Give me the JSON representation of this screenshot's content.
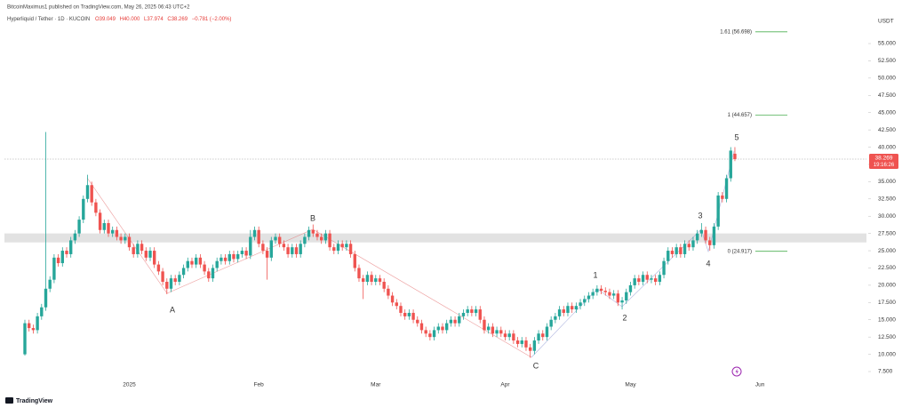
{
  "header": {
    "published": "BitcoinMaximus1 published on TradingView.com, May 26, 2025 06:43 UTC+2",
    "symbol": "Hyperliquid / Tether · 1D · KUCOIN",
    "ohlc": [
      "O39.049",
      "H40.000",
      "L37.974",
      "C38.269"
    ],
    "change": "−0.781 (−2.00%)"
  },
  "footer": {
    "logo": "TradingView"
  },
  "chart_data": {
    "type": "candlestick",
    "up_color": "#26a69a",
    "down_color": "#ef5350",
    "currency": "USDT",
    "ylim": [
      5.955,
      59.38
    ],
    "yticks": [
      {
        "value": 7.5,
        "label": "7.500"
      },
      {
        "value": 10,
        "label": "10.000"
      },
      {
        "value": 12.5,
        "label": "12.500"
      },
      {
        "value": 15,
        "label": "15.000"
      },
      {
        "value": 17.5,
        "label": "17.500"
      },
      {
        "value": 20,
        "label": "20.000"
      },
      {
        "value": 22.5,
        "label": "22.500"
      },
      {
        "value": 25,
        "label": "25.000"
      },
      {
        "value": 27.5,
        "label": "27.500"
      },
      {
        "value": 30,
        "label": "30.000"
      },
      {
        "value": 32.5,
        "label": "32.500"
      },
      {
        "value": 35,
        "label": "35.000"
      },
      {
        "value": 37.5,
        "label": "37.500"
      },
      {
        "value": 40,
        "label": "40.000"
      },
      {
        "value": 42.5,
        "label": "42.500"
      },
      {
        "value": 45,
        "label": "45.000"
      },
      {
        "value": 47.5,
        "label": "47.500"
      },
      {
        "value": 50,
        "label": "50.000"
      },
      {
        "value": 52.5,
        "label": "52.500"
      },
      {
        "value": 55,
        "label": "55.000"
      }
    ],
    "grid": false,
    "categories": [
      null,
      null,
      null,
      null,
      null,
      null,
      null,
      null,
      null,
      null,
      null,
      null,
      null,
      null,
      null,
      null,
      null,
      null,
      null,
      null,
      null,
      null,
      null,
      null,
      null,
      "2025",
      null,
      null,
      null,
      null,
      null,
      null,
      null,
      null,
      null,
      null,
      null,
      null,
      null,
      null,
      null,
      null,
      null,
      null,
      null,
      null,
      null,
      null,
      null,
      null,
      null,
      null,
      null,
      null,
      null,
      null,
      "Feb",
      null,
      null,
      null,
      null,
      null,
      null,
      null,
      null,
      null,
      null,
      null,
      null,
      null,
      null,
      null,
      null,
      null,
      null,
      null,
      null,
      null,
      null,
      null,
      null,
      null,
      null,
      null,
      "Mar",
      null,
      null,
      null,
      null,
      null,
      null,
      null,
      null,
      null,
      null,
      null,
      null,
      null,
      null,
      null,
      null,
      null,
      null,
      null,
      null,
      null,
      null,
      null,
      null,
      null,
      null,
      null,
      null,
      null,
      null,
      "Apr",
      null,
      null,
      null,
      null,
      null,
      null,
      null,
      null,
      null,
      null,
      null,
      null,
      null,
      null,
      null,
      null,
      null,
      null,
      null,
      null,
      null,
      null,
      null,
      null,
      null,
      null,
      null,
      null,
      null,
      "May",
      null,
      null,
      null,
      null,
      null,
      null,
      null,
      null,
      null,
      null,
      null,
      null,
      null,
      null,
      null,
      null,
      null,
      null,
      null,
      null,
      null,
      null,
      null,
      null,
      null,
      null,
      null,
      null,
      null,
      null,
      "Jun",
      null,
      null,
      null,
      null,
      null,
      null,
      null,
      null,
      null,
      null,
      null,
      null,
      null,
      null,
      null,
      null,
      null,
      null,
      null,
      null,
      null,
      null,
      null,
      null,
      null
    ],
    "values": [
      [
        10.0,
        15.0,
        9.8,
        14.5
      ],
      [
        14.5,
        15.0,
        13.3,
        13.8
      ],
      [
        13.8,
        14.3,
        13.0,
        13.5
      ],
      [
        13.5,
        16.0,
        13.0,
        15.5
      ],
      [
        15.5,
        17.3,
        15.0,
        16.8
      ],
      [
        16.8,
        42.2,
        16.3,
        19.5
      ],
      [
        19.5,
        21.3,
        19.0,
        20.8
      ],
      [
        20.8,
        24.5,
        20.3,
        24.0
      ],
      [
        24.0,
        24.5,
        22.7,
        23.2
      ],
      [
        23.2,
        25.5,
        22.7,
        25.0
      ],
      [
        25.0,
        25.5,
        24.0,
        24.5
      ],
      [
        24.5,
        27.0,
        24.0,
        26.5
      ],
      [
        26.5,
        28.0,
        26.0,
        27.5
      ],
      [
        27.5,
        30.0,
        27.0,
        29.5
      ],
      [
        29.5,
        33.0,
        29.0,
        32.5
      ],
      [
        32.5,
        36.0,
        32.0,
        34.5
      ],
      [
        34.5,
        35.0,
        31.5,
        32.0
      ],
      [
        32.0,
        32.5,
        30.0,
        30.5
      ],
      [
        30.5,
        31.0,
        27.5,
        28.0
      ],
      [
        28.0,
        29.5,
        27.5,
        29.0
      ],
      [
        29.0,
        29.5,
        27.0,
        27.5
      ],
      [
        27.5,
        28.5,
        27.0,
        28.0
      ],
      [
        28.0,
        28.5,
        26.5,
        27.0
      ],
      [
        27.0,
        27.5,
        26.0,
        26.5
      ],
      [
        26.5,
        27.5,
        26.0,
        27.0
      ],
      [
        27.0,
        27.5,
        25.0,
        25.5
      ],
      [
        25.5,
        26.0,
        24.0,
        24.5
      ],
      [
        24.5,
        26.5,
        24.0,
        26.0
      ],
      [
        26.0,
        26.5,
        24.5,
        25.0
      ],
      [
        25.0,
        25.5,
        23.5,
        24.0
      ],
      [
        24.0,
        25.5,
        23.5,
        25.0
      ],
      [
        25.0,
        25.5,
        22.5,
        23.0
      ],
      [
        23.0,
        23.5,
        21.5,
        22.0
      ],
      [
        22.0,
        22.5,
        20.0,
        20.5
      ],
      [
        20.5,
        21.0,
        18.7,
        19.5
      ],
      [
        19.5,
        21.5,
        19.0,
        21.0
      ],
      [
        21.0,
        21.5,
        20.0,
        20.5
      ],
      [
        20.5,
        22.0,
        20.0,
        21.5
      ],
      [
        21.5,
        23.0,
        21.0,
        22.5
      ],
      [
        22.5,
        24.0,
        22.0,
        23.5
      ],
      [
        23.5,
        24.0,
        22.5,
        23.0
      ],
      [
        23.0,
        24.5,
        22.5,
        24.0
      ],
      [
        24.0,
        24.5,
        22.5,
        23.0
      ],
      [
        23.0,
        23.5,
        21.5,
        22.0
      ],
      [
        22.0,
        22.5,
        20.5,
        21.0
      ],
      [
        21.0,
        23.0,
        20.5,
        22.5
      ],
      [
        22.5,
        24.0,
        22.0,
        23.5
      ],
      [
        23.5,
        24.5,
        23.0,
        24.0
      ],
      [
        24.0,
        24.5,
        23.0,
        23.5
      ],
      [
        23.5,
        25.0,
        23.0,
        24.5
      ],
      [
        24.5,
        25.0,
        23.3,
        23.8
      ],
      [
        23.8,
        25.0,
        23.3,
        24.5
      ],
      [
        24.5,
        25.5,
        24.0,
        25.0
      ],
      [
        25.0,
        25.5,
        23.8,
        24.3
      ],
      [
        24.3,
        28.0,
        23.8,
        27.0
      ],
      [
        27.0,
        28.5,
        26.5,
        28.0
      ],
      [
        28.0,
        28.5,
        25.5,
        26.0
      ],
      [
        26.0,
        26.5,
        24.5,
        25.0
      ],
      [
        25.0,
        25.5,
        20.8,
        24.0
      ],
      [
        24.0,
        27.0,
        23.5,
        26.5
      ],
      [
        26.5,
        27.5,
        26.0,
        27.0
      ],
      [
        27.0,
        27.5,
        25.5,
        26.0
      ],
      [
        26.0,
        26.5,
        25.0,
        25.5
      ],
      [
        25.5,
        26.0,
        24.0,
        24.5
      ],
      [
        24.5,
        26.0,
        24.0,
        25.5
      ],
      [
        25.5,
        26.0,
        24.0,
        24.5
      ],
      [
        24.5,
        26.5,
        24.0,
        26.0
      ],
      [
        26.0,
        27.5,
        25.5,
        27.0
      ],
      [
        27.0,
        28.5,
        26.5,
        28.0
      ],
      [
        28.0,
        28.8,
        27.0,
        27.5
      ],
      [
        27.5,
        28.0,
        26.5,
        27.0
      ],
      [
        27.0,
        27.5,
        26.0,
        26.5
      ],
      [
        26.5,
        28.0,
        26.0,
        27.5
      ],
      [
        27.5,
        28.0,
        25.0,
        25.5
      ],
      [
        25.5,
        26.0,
        24.5,
        25.0
      ],
      [
        25.0,
        26.5,
        24.5,
        26.0
      ],
      [
        26.0,
        26.5,
        25.0,
        25.5
      ],
      [
        25.5,
        26.5,
        25.0,
        26.0
      ],
      [
        26.0,
        26.5,
        24.0,
        24.5
      ],
      [
        24.5,
        25.0,
        22.0,
        22.5
      ],
      [
        22.5,
        23.0,
        20.5,
        21.0
      ],
      [
        21.0,
        21.5,
        18.0,
        20.5
      ],
      [
        20.5,
        22.0,
        20.0,
        21.5
      ],
      [
        21.5,
        22.0,
        20.0,
        20.5
      ],
      [
        20.5,
        21.5,
        20.0,
        21.0
      ],
      [
        21.0,
        21.5,
        20.0,
        20.5
      ],
      [
        20.5,
        21.0,
        19.0,
        19.5
      ],
      [
        19.5,
        20.0,
        18.0,
        18.5
      ],
      [
        18.5,
        19.0,
        17.0,
        17.5
      ],
      [
        17.5,
        18.0,
        16.5,
        17.0
      ],
      [
        17.0,
        17.5,
        15.5,
        16.0
      ],
      [
        16.0,
        16.5,
        15.0,
        15.5
      ],
      [
        15.5,
        16.5,
        15.0,
        16.0
      ],
      [
        16.0,
        16.5,
        14.5,
        15.0
      ],
      [
        15.0,
        15.5,
        14.0,
        14.5
      ],
      [
        14.5,
        15.0,
        13.0,
        13.5
      ],
      [
        13.5,
        14.0,
        12.5,
        13.0
      ],
      [
        13.0,
        13.5,
        12.0,
        12.5
      ],
      [
        12.5,
        14.0,
        12.0,
        13.5
      ],
      [
        13.5,
        14.5,
        13.0,
        14.0
      ],
      [
        14.0,
        14.5,
        13.0,
        13.5
      ],
      [
        13.5,
        15.0,
        13.0,
        14.5
      ],
      [
        14.5,
        15.5,
        14.0,
        15.0
      ],
      [
        15.0,
        15.5,
        14.0,
        14.5
      ],
      [
        14.5,
        16.0,
        14.0,
        15.5
      ],
      [
        15.5,
        16.5,
        15.0,
        16.0
      ],
      [
        16.0,
        17.0,
        15.5,
        16.5
      ],
      [
        16.5,
        17.0,
        15.5,
        16.0
      ],
      [
        16.0,
        17.0,
        15.5,
        16.5
      ],
      [
        16.5,
        17.0,
        14.5,
        15.0
      ],
      [
        15.0,
        15.5,
        13.0,
        13.5
      ],
      [
        13.5,
        14.5,
        13.0,
        14.0
      ],
      [
        14.0,
        14.5,
        12.5,
        13.0
      ],
      [
        13.0,
        14.0,
        12.5,
        13.5
      ],
      [
        13.5,
        14.0,
        12.5,
        13.0
      ],
      [
        13.0,
        13.5,
        12.0,
        12.5
      ],
      [
        12.5,
        13.5,
        12.0,
        13.0
      ],
      [
        13.0,
        13.5,
        11.5,
        12.0
      ],
      [
        12.0,
        12.5,
        11.0,
        11.5
      ],
      [
        11.5,
        12.5,
        11.0,
        12.0
      ],
      [
        12.0,
        12.5,
        10.5,
        11.0
      ],
      [
        11.0,
        11.5,
        9.5,
        10.5
      ],
      [
        10.5,
        12.5,
        10.0,
        12.0
      ],
      [
        12.0,
        13.5,
        11.5,
        13.0
      ],
      [
        13.0,
        13.5,
        12.0,
        12.5
      ],
      [
        12.5,
        14.5,
        12.0,
        14.0
      ],
      [
        14.0,
        15.5,
        13.5,
        15.0
      ],
      [
        15.0,
        16.0,
        14.5,
        15.5
      ],
      [
        15.5,
        17.0,
        15.0,
        16.5
      ],
      [
        16.5,
        17.0,
        15.5,
        16.0
      ],
      [
        16.0,
        17.5,
        15.5,
        17.0
      ],
      [
        17.0,
        17.5,
        16.0,
        16.5
      ],
      [
        16.5,
        17.5,
        16.0,
        17.0
      ],
      [
        17.0,
        18.0,
        16.5,
        17.5
      ],
      [
        17.5,
        18.5,
        17.0,
        18.0
      ],
      [
        18.0,
        19.0,
        17.5,
        18.5
      ],
      [
        18.5,
        19.5,
        18.0,
        19.0
      ],
      [
        19.0,
        20.0,
        18.5,
        19.5
      ],
      [
        19.5,
        20.0,
        18.7,
        19.2
      ],
      [
        19.2,
        19.7,
        18.5,
        19.0
      ],
      [
        19.0,
        19.5,
        18.0,
        18.5
      ],
      [
        18.5,
        19.3,
        18.0,
        18.8
      ],
      [
        18.8,
        19.3,
        17.0,
        17.5
      ],
      [
        17.5,
        18.3,
        16.5,
        17.8
      ],
      [
        17.8,
        19.5,
        17.3,
        19.0
      ],
      [
        19.0,
        20.5,
        18.5,
        20.0
      ],
      [
        20.0,
        21.5,
        19.5,
        21.0
      ],
      [
        21.0,
        21.5,
        20.0,
        20.5
      ],
      [
        20.5,
        22.0,
        20.0,
        21.5
      ],
      [
        21.5,
        22.0,
        20.3,
        20.8
      ],
      [
        20.8,
        21.5,
        20.3,
        21.0
      ],
      [
        21.0,
        21.5,
        20.0,
        20.5
      ],
      [
        20.5,
        22.0,
        20.0,
        21.5
      ],
      [
        21.5,
        24.0,
        21.0,
        23.5
      ],
      [
        23.5,
        25.5,
        23.0,
        25.0
      ],
      [
        25.0,
        25.5,
        24.0,
        24.5
      ],
      [
        24.5,
        26.0,
        24.0,
        25.5
      ],
      [
        25.5,
        26.0,
        24.0,
        24.5
      ],
      [
        24.5,
        26.5,
        24.0,
        26.0
      ],
      [
        26.0,
        26.5,
        25.0,
        25.5
      ],
      [
        25.5,
        27.0,
        25.0,
        26.5
      ],
      [
        26.5,
        28.0,
        26.0,
        27.5
      ],
      [
        27.5,
        29.0,
        27.0,
        28.0
      ],
      [
        28.0,
        28.5,
        26.0,
        26.5
      ],
      [
        26.5,
        27.0,
        25.0,
        25.8
      ],
      [
        25.8,
        29.0,
        25.3,
        28.5
      ],
      [
        28.5,
        33.5,
        28.0,
        33.0
      ],
      [
        33.0,
        33.5,
        32.0,
        32.5
      ],
      [
        32.5,
        36.0,
        32.0,
        35.5
      ],
      [
        35.5,
        40.0,
        35.0,
        39.5
      ],
      [
        39.049,
        40.0,
        37.974,
        38.269
      ],
      null,
      null,
      null,
      null,
      null,
      null,
      null,
      null,
      null,
      null,
      null,
      null,
      null,
      null,
      null,
      null,
      null,
      null,
      null,
      null,
      null,
      null,
      null,
      null,
      null,
      null,
      null,
      null,
      null,
      null,
      null
    ],
    "zone": [
      26.2,
      27.5
    ],
    "price_tag": {
      "value": 38.269,
      "label": "38.269",
      "countdown": "19:16:26"
    },
    "fib_levels": [
      {
        "value": 56.698,
        "label": "1.61 (56.698)"
      },
      {
        "value": 44.657,
        "label": "1 (44.657)"
      },
      {
        "value": 24.917,
        "label": "0 (24.917)"
      }
    ],
    "fib_color": "#4caf50",
    "wave_labels": [
      {
        "text": "A",
        "color": "#e53935"
      },
      {
        "text": "B",
        "color": "#e53935"
      },
      {
        "text": "C",
        "color": "#e53935"
      },
      {
        "text": "1",
        "color": "#43a047"
      },
      {
        "text": "2",
        "color": "#43a047"
      },
      {
        "text": "3",
        "color": "#43a047"
      },
      {
        "text": "4",
        "color": "#43a047"
      },
      {
        "text": "5",
        "color": "#43a047"
      }
    ]
  }
}
